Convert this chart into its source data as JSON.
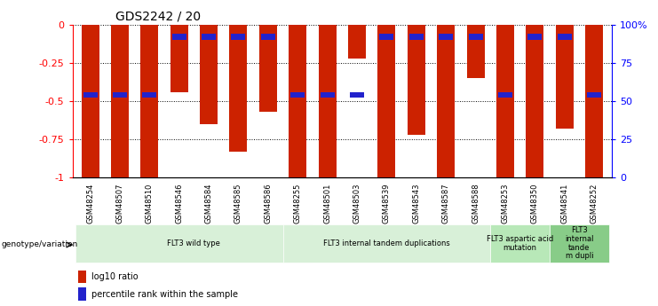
{
  "title": "GDS2242 / 20",
  "samples": [
    "GSM48254",
    "GSM48507",
    "GSM48510",
    "GSM48546",
    "GSM48584",
    "GSM48585",
    "GSM48586",
    "GSM48255",
    "GSM48501",
    "GSM48503",
    "GSM48539",
    "GSM48543",
    "GSM48587",
    "GSM48588",
    "GSM48253",
    "GSM48350",
    "GSM48541",
    "GSM48252"
  ],
  "log10_ratio": [
    -1.0,
    -1.0,
    -1.0,
    -0.44,
    -0.65,
    -0.83,
    -0.57,
    -1.0,
    -1.0,
    -0.22,
    -1.0,
    -0.72,
    -1.0,
    -0.35,
    -1.0,
    -1.0,
    -0.68,
    -1.0
  ],
  "percentile_rank_pct": [
    46,
    46,
    46,
    8,
    8,
    8,
    8,
    46,
    46,
    46,
    8,
    8,
    8,
    8,
    46,
    8,
    8,
    46
  ],
  "bar_color": "#cc2200",
  "blue_color": "#2222cc",
  "groups": [
    {
      "label": "FLT3 wild type",
      "start": 0,
      "end": 7,
      "color": "#d8f0d8"
    },
    {
      "label": "FLT3 internal tandem duplications",
      "start": 7,
      "end": 13,
      "color": "#d8f0d8"
    },
    {
      "label": "FLT3 aspartic acid\nmutation",
      "start": 14,
      "end": 15,
      "color": "#b8e8b8"
    },
    {
      "label": "FLT3\ninternal\ntande\nm dupli",
      "start": 16,
      "end": 17,
      "color": "#88cc88"
    }
  ],
  "yticks_left": [
    0,
    -0.25,
    -0.5,
    -0.75,
    -1.0
  ],
  "ytick_labels_left": [
    "0",
    "-0.25",
    "-0.5",
    "-0.75",
    "-1"
  ],
  "yticks_right": [
    0,
    25,
    50,
    75,
    100
  ],
  "ytick_labels_right": [
    "0",
    "25",
    "50",
    "75",
    "100%"
  ],
  "legend_red": "log10 ratio",
  "legend_blue": "percentile rank within the sample",
  "genotype_label": "genotype/variation"
}
